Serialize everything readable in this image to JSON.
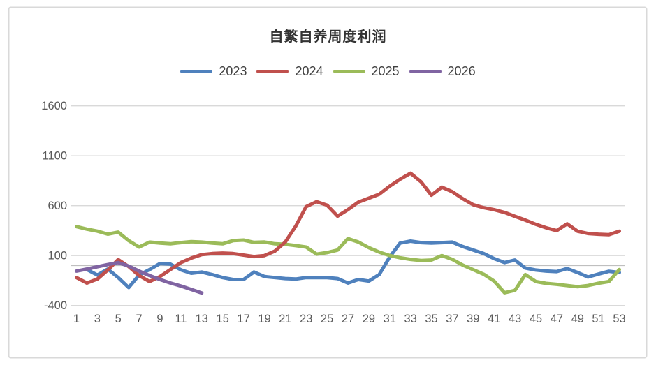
{
  "title": "自繁自养周度利润",
  "colors": {
    "background": "#FFFFFF",
    "frame": "#D9D9D9",
    "grid": "#D9D9D9",
    "axis_line": "#BFBFBF",
    "tick_text": "#595959",
    "title_text": "#333333"
  },
  "chart_data": {
    "type": "line",
    "title": "自繁自养周度利润",
    "xlabel": "",
    "ylabel": "",
    "x_ticks": [
      1,
      3,
      5,
      7,
      9,
      11,
      13,
      15,
      17,
      19,
      21,
      23,
      25,
      27,
      29,
      31,
      33,
      35,
      37,
      39,
      41,
      43,
      45,
      47,
      49,
      51,
      53
    ],
    "y_ticks": [
      1600,
      1100,
      600,
      100,
      -400
    ],
    "ylim": [
      -400,
      1600
    ],
    "x_range": [
      1,
      53
    ],
    "grid": true,
    "legend_position": "top",
    "zero_axis_line": 0,
    "draw_order": [
      0,
      2,
      1,
      3
    ],
    "series": [
      {
        "name": "2023",
        "color": "#4F81BD",
        "values": [
          null,
          -40,
          -95,
          -35,
          -120,
          -220,
          -95,
          -40,
          20,
          15,
          -43,
          -77,
          -65,
          -90,
          -120,
          -140,
          -140,
          -65,
          -110,
          -120,
          -130,
          -135,
          -120,
          -120,
          -120,
          -130,
          -175,
          -140,
          -155,
          -90,
          85,
          225,
          245,
          230,
          225,
          230,
          235,
          190,
          155,
          120,
          70,
          30,
          55,
          -25,
          -45,
          -55,
          -60,
          -30,
          -70,
          -115,
          -85,
          -57,
          -70
        ]
      },
      {
        "name": "2024",
        "color": "#C0504D",
        "values": [
          -120,
          -175,
          -135,
          -45,
          60,
          -10,
          -100,
          -160,
          -110,
          -40,
          30,
          75,
          110,
          120,
          125,
          120,
          105,
          90,
          100,
          145,
          235,
          395,
          590,
          640,
          605,
          495,
          560,
          635,
          675,
          715,
          795,
          865,
          925,
          840,
          705,
          785,
          740,
          670,
          610,
          580,
          560,
          532,
          493,
          455,
          413,
          378,
          350,
          418,
          344,
          321,
          314,
          310,
          345
        ]
      },
      {
        "name": "2025",
        "color": "#9BBB59",
        "values": [
          390,
          365,
          345,
          315,
          335,
          250,
          185,
          235,
          225,
          218,
          230,
          240,
          235,
          225,
          218,
          250,
          255,
          232,
          236,
          218,
          213,
          200,
          185,
          115,
          130,
          155,
          270,
          236,
          180,
          135,
          101,
          78,
          62,
          51,
          55,
          100,
          62,
          5,
          -41,
          -87,
          -155,
          -272,
          -248,
          -90,
          -160,
          -178,
          -188,
          -200,
          -212,
          -200,
          -177,
          -160,
          -40
        ]
      },
      {
        "name": "2026",
        "color": "#8064A2",
        "values": [
          -55,
          -35,
          -12,
          10,
          30,
          -5,
          -55,
          -100,
          -140,
          -175,
          -205,
          -240,
          -275,
          null,
          null,
          null,
          null,
          null,
          null,
          null,
          null,
          null,
          null,
          null,
          null,
          null,
          null,
          null,
          null,
          null,
          null,
          null,
          null,
          null,
          null,
          null,
          null,
          null,
          null,
          null,
          null,
          null,
          null,
          null,
          null,
          null,
          null,
          null,
          null,
          null,
          null,
          null,
          null
        ]
      }
    ]
  }
}
